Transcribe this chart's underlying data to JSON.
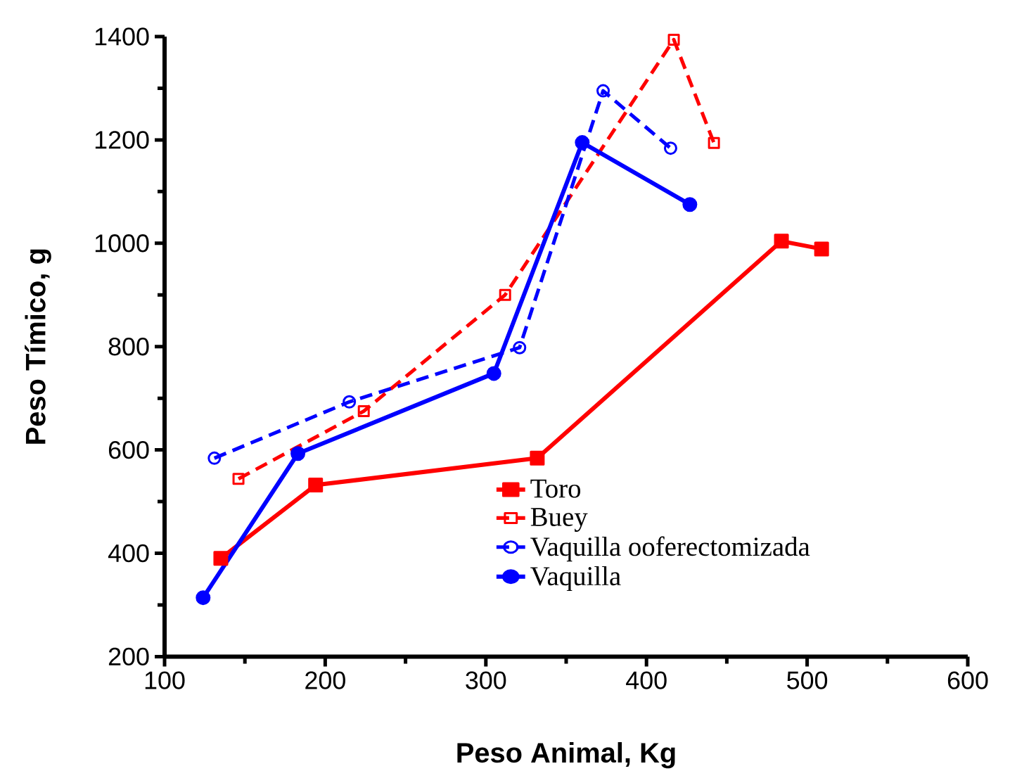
{
  "chart_data": {
    "type": "line",
    "xlabel": "Peso Animal, Kg",
    "ylabel": "Peso Tímico, g",
    "xlim": [
      100,
      600
    ],
    "xticks": [
      100,
      200,
      300,
      400,
      500,
      600
    ],
    "ylim": [
      200,
      1400
    ],
    "yticks": [
      200,
      400,
      600,
      800,
      1000,
      1200,
      1400
    ],
    "grid": false,
    "legend": "bottom right",
    "series": [
      {
        "name": "Toro",
        "color": "#ff0000",
        "line_style": "solid",
        "marker": "square",
        "x": [
          135,
          194,
          332,
          484,
          509
        ],
        "values": [
          390,
          532,
          584,
          1004,
          989
        ]
      },
      {
        "name": "Buey",
        "color": "#ff0000",
        "line_style": "dashed",
        "marker": "square",
        "x": [
          146,
          224,
          312,
          417,
          442
        ],
        "values": [
          544,
          675,
          900,
          1394,
          1194
        ]
      },
      {
        "name": "Vaquilla ooferectomizada",
        "color": "#0000ff",
        "line_style": "dashed",
        "marker": "circle",
        "x": [
          131,
          215,
          321,
          373,
          415
        ],
        "values": [
          584,
          693,
          798,
          1295,
          1184
        ]
      },
      {
        "name": "Vaquilla",
        "color": "#0000ff",
        "line_style": "solid",
        "marker": "circle",
        "x": [
          124,
          183,
          305,
          360,
          427
        ],
        "values": [
          314,
          593,
          748,
          1195,
          1075
        ]
      }
    ]
  }
}
